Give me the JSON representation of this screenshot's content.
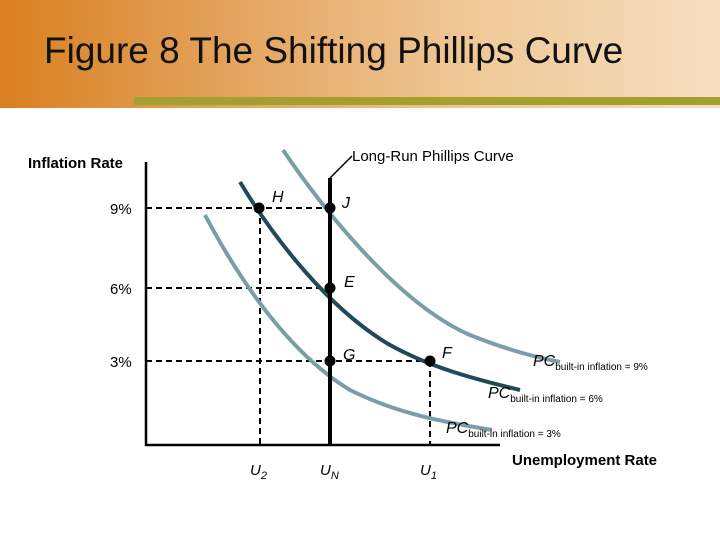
{
  "slide": {
    "title": "Figure 8 The Shifting Phillips Curve"
  },
  "diagram": {
    "y_axis_label": "Inflation Rate",
    "x_axis_label": "Unemployment Rate",
    "lrpc_label": "Long-Run Phillips Curve",
    "y_ticks": [
      "9%",
      "6%",
      "3%"
    ],
    "x_ticks": [
      {
        "main": "U",
        "sub": "2"
      },
      {
        "main": "U",
        "sub": "N"
      },
      {
        "main": "U",
        "sub": "1"
      }
    ],
    "points": [
      "H",
      "J",
      "E",
      "G",
      "F"
    ],
    "curves": [
      {
        "main": "PC",
        "sub": "built-in inflation = 9%"
      },
      {
        "main": "PC",
        "sub": "built-in inflation = 6%"
      },
      {
        "main": "PC",
        "sub": "built-in inflation = 3%"
      }
    ],
    "colors": {
      "accent_bar": "#a3a030",
      "pc_9": "#7a9ea8",
      "pc_6": "#1f4a5a",
      "pc_3": "#7a9ea8",
      "lrpc": "#000000"
    }
  }
}
